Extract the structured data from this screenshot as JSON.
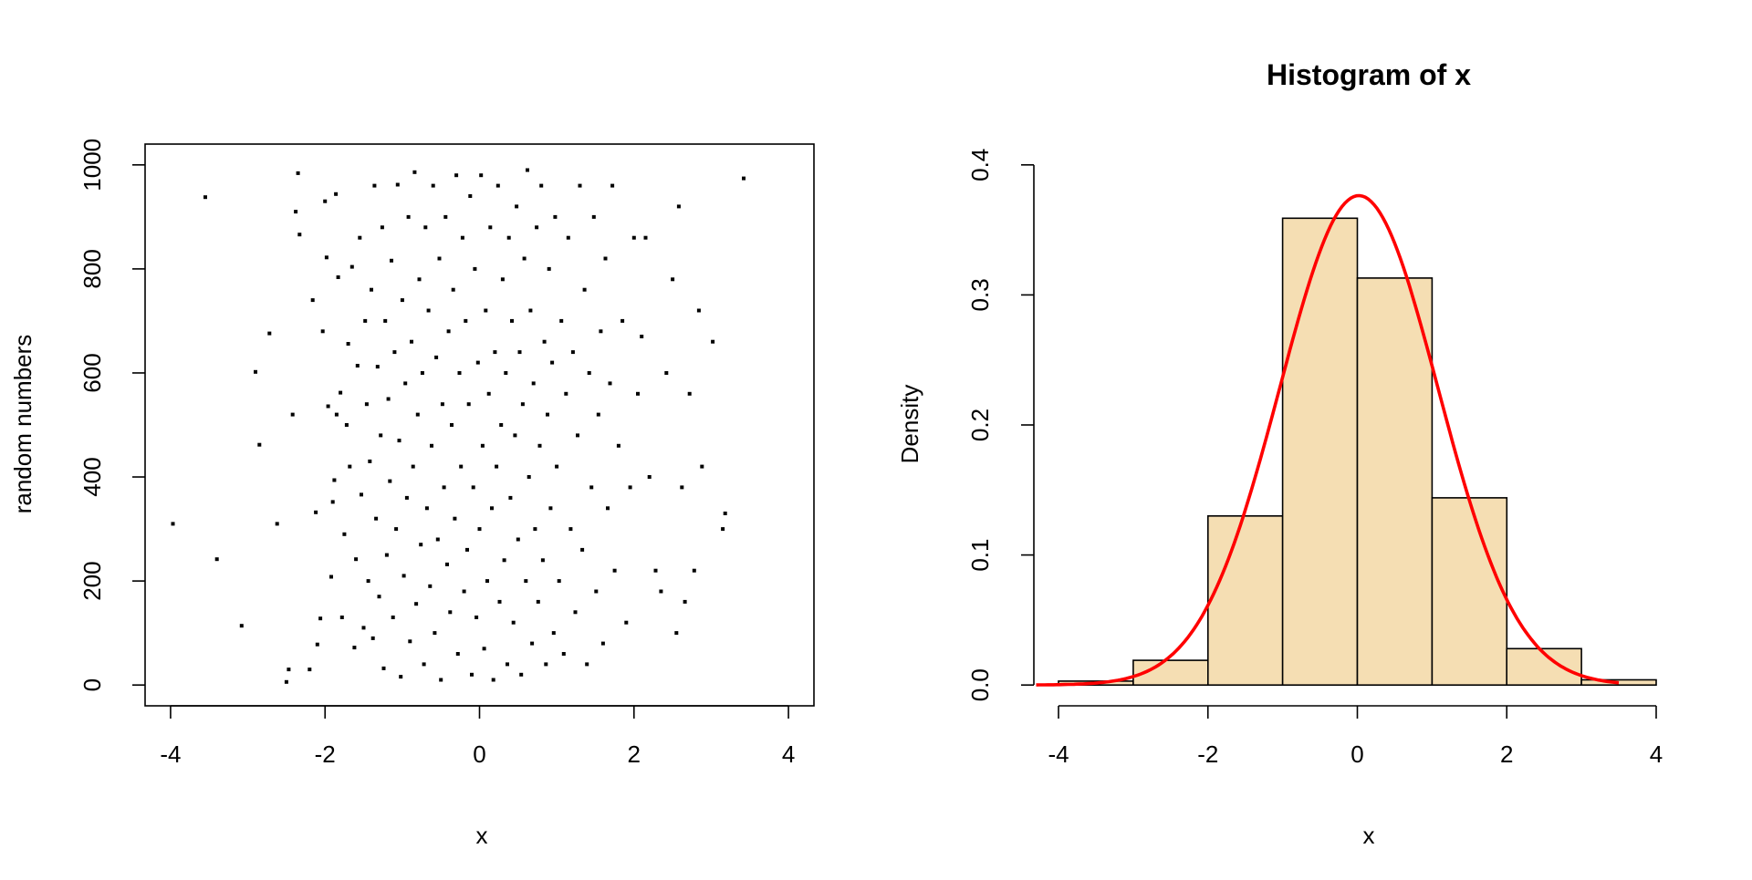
{
  "chart_data": [
    {
      "type": "scatter",
      "title": "",
      "xlabel": "x",
      "ylabel": "random numbers",
      "xlim": [
        -4.33,
        4.33
      ],
      "ylim": [
        -40,
        1040
      ],
      "x_ticks": [
        "-4",
        "-2",
        "0",
        "2",
        "4"
      ],
      "y_ticks": [
        "0",
        "200",
        "400",
        "600",
        "800",
        "1000"
      ],
      "x_tick_values": [
        -4,
        -2,
        0,
        2,
        4
      ],
      "y_tick_values": [
        0,
        200,
        400,
        600,
        800,
        1000
      ],
      "grid": false,
      "point_style": "small filled square",
      "points": [
        [
          -3.97,
          310
        ],
        [
          -3.55,
          938
        ],
        [
          -3.4,
          242
        ],
        [
          -3.08,
          114
        ],
        [
          -2.9,
          602
        ],
        [
          -2.85,
          462
        ],
        [
          -2.72,
          676
        ],
        [
          -2.62,
          310
        ],
        [
          -2.5,
          6
        ],
        [
          -2.47,
          30
        ],
        [
          -2.42,
          520
        ],
        [
          -2.38,
          910
        ],
        [
          -2.35,
          984
        ],
        [
          -2.33,
          866
        ],
        [
          -2.2,
          30
        ],
        [
          -2.16,
          740
        ],
        [
          -2.12,
          332
        ],
        [
          -2.1,
          78
        ],
        [
          -2.06,
          128
        ],
        [
          -2.03,
          680
        ],
        [
          -2.0,
          930
        ],
        [
          -1.98,
          822
        ],
        [
          -1.96,
          536
        ],
        [
          -1.92,
          208
        ],
        [
          -1.9,
          352
        ],
        [
          -1.88,
          394
        ],
        [
          -1.86,
          944
        ],
        [
          -1.85,
          520
        ],
        [
          -1.83,
          784
        ],
        [
          -1.8,
          562
        ],
        [
          -1.78,
          130
        ],
        [
          -1.75,
          290
        ],
        [
          -1.72,
          500
        ],
        [
          -1.7,
          656
        ],
        [
          -1.68,
          420
        ],
        [
          -1.65,
          804
        ],
        [
          -1.62,
          72
        ],
        [
          -1.6,
          242
        ],
        [
          -1.58,
          614
        ],
        [
          -1.55,
          860
        ],
        [
          -1.53,
          366
        ],
        [
          -1.5,
          110
        ],
        [
          -1.48,
          700
        ],
        [
          -1.46,
          540
        ],
        [
          -1.44,
          200
        ],
        [
          -1.42,
          430
        ],
        [
          -1.4,
          760
        ],
        [
          -1.38,
          90
        ],
        [
          -1.36,
          960
        ],
        [
          -1.34,
          320
        ],
        [
          -1.32,
          612
        ],
        [
          -1.3,
          170
        ],
        [
          -1.28,
          480
        ],
        [
          -1.26,
          880
        ],
        [
          -1.24,
          32
        ],
        [
          -1.22,
          700
        ],
        [
          -1.2,
          250
        ],
        [
          -1.18,
          550
        ],
        [
          -1.16,
          392
        ],
        [
          -1.14,
          816
        ],
        [
          -1.12,
          130
        ],
        [
          -1.1,
          640
        ],
        [
          -1.08,
          300
        ],
        [
          -1.06,
          962
        ],
        [
          -1.04,
          470
        ],
        [
          -1.02,
          16
        ],
        [
          -1.0,
          740
        ],
        [
          -0.98,
          210
        ],
        [
          -0.96,
          580
        ],
        [
          -0.94,
          360
        ],
        [
          -0.92,
          900
        ],
        [
          -0.9,
          84
        ],
        [
          -0.88,
          660
        ],
        [
          -0.86,
          420
        ],
        [
          -0.84,
          986
        ],
        [
          -0.82,
          156
        ],
        [
          -0.8,
          520
        ],
        [
          -0.78,
          780
        ],
        [
          -0.76,
          270
        ],
        [
          -0.74,
          600
        ],
        [
          -0.72,
          40
        ],
        [
          -0.7,
          880
        ],
        [
          -0.68,
          340
        ],
        [
          -0.66,
          720
        ],
        [
          -0.64,
          190
        ],
        [
          -0.62,
          460
        ],
        [
          -0.6,
          960
        ],
        [
          -0.58,
          100
        ],
        [
          -0.56,
          630
        ],
        [
          -0.54,
          280
        ],
        [
          -0.52,
          820
        ],
        [
          -0.5,
          10
        ],
        [
          -0.48,
          540
        ],
        [
          -0.46,
          380
        ],
        [
          -0.44,
          900
        ],
        [
          -0.42,
          232
        ],
        [
          -0.4,
          680
        ],
        [
          -0.38,
          140
        ],
        [
          -0.36,
          500
        ],
        [
          -0.34,
          760
        ],
        [
          -0.32,
          320
        ],
        [
          -0.3,
          980
        ],
        [
          -0.28,
          60
        ],
        [
          -0.26,
          600
        ],
        [
          -0.24,
          420
        ],
        [
          -0.22,
          860
        ],
        [
          -0.2,
          180
        ],
        [
          -0.18,
          700
        ],
        [
          -0.16,
          260
        ],
        [
          -0.14,
          540
        ],
        [
          -0.12,
          940
        ],
        [
          -0.1,
          20
        ],
        [
          -0.08,
          380
        ],
        [
          -0.06,
          800
        ],
        [
          -0.04,
          130
        ],
        [
          -0.02,
          620
        ],
        [
          0.0,
          300
        ],
        [
          0.02,
          980
        ],
        [
          0.04,
          460
        ],
        [
          0.06,
          70
        ],
        [
          0.08,
          720
        ],
        [
          0.1,
          200
        ],
        [
          0.12,
          560
        ],
        [
          0.14,
          880
        ],
        [
          0.16,
          340
        ],
        [
          0.18,
          10
        ],
        [
          0.2,
          640
        ],
        [
          0.22,
          420
        ],
        [
          0.24,
          960
        ],
        [
          0.26,
          160
        ],
        [
          0.28,
          500
        ],
        [
          0.3,
          780
        ],
        [
          0.32,
          240
        ],
        [
          0.34,
          600
        ],
        [
          0.36,
          40
        ],
        [
          0.38,
          860
        ],
        [
          0.4,
          360
        ],
        [
          0.42,
          700
        ],
        [
          0.44,
          120
        ],
        [
          0.46,
          480
        ],
        [
          0.48,
          920
        ],
        [
          0.5,
          280
        ],
        [
          0.52,
          640
        ],
        [
          0.54,
          20
        ],
        [
          0.56,
          540
        ],
        [
          0.58,
          820
        ],
        [
          0.6,
          200
        ],
        [
          0.62,
          990
        ],
        [
          0.64,
          400
        ],
        [
          0.66,
          720
        ],
        [
          0.68,
          80
        ],
        [
          0.7,
          580
        ],
        [
          0.72,
          300
        ],
        [
          0.74,
          880
        ],
        [
          0.76,
          160
        ],
        [
          0.78,
          460
        ],
        [
          0.8,
          960
        ],
        [
          0.82,
          240
        ],
        [
          0.84,
          660
        ],
        [
          0.86,
          40
        ],
        [
          0.88,
          520
        ],
        [
          0.9,
          800
        ],
        [
          0.92,
          340
        ],
        [
          0.94,
          620
        ],
        [
          0.96,
          100
        ],
        [
          0.98,
          900
        ],
        [
          1.0,
          420
        ],
        [
          1.03,
          200
        ],
        [
          1.06,
          700
        ],
        [
          1.09,
          60
        ],
        [
          1.12,
          560
        ],
        [
          1.15,
          860
        ],
        [
          1.18,
          300
        ],
        [
          1.21,
          640
        ],
        [
          1.24,
          140
        ],
        [
          1.27,
          480
        ],
        [
          1.3,
          960
        ],
        [
          1.33,
          260
        ],
        [
          1.36,
          760
        ],
        [
          1.39,
          40
        ],
        [
          1.42,
          600
        ],
        [
          1.45,
          380
        ],
        [
          1.48,
          900
        ],
        [
          1.51,
          180
        ],
        [
          1.54,
          520
        ],
        [
          1.57,
          680
        ],
        [
          1.6,
          80
        ],
        [
          1.63,
          820
        ],
        [
          1.66,
          340
        ],
        [
          1.69,
          580
        ],
        [
          1.72,
          960
        ],
        [
          1.75,
          220
        ],
        [
          1.8,
          460
        ],
        [
          1.85,
          700
        ],
        [
          1.9,
          120
        ],
        [
          1.95,
          380
        ],
        [
          2.0,
          860
        ],
        [
          2.05,
          560
        ],
        [
          2.1,
          670
        ],
        [
          2.15,
          860
        ],
        [
          2.2,
          400
        ],
        [
          2.28,
          220
        ],
        [
          2.35,
          180
        ],
        [
          2.42,
          600
        ],
        [
          2.5,
          780
        ],
        [
          2.55,
          100
        ],
        [
          2.58,
          920
        ],
        [
          2.62,
          380
        ],
        [
          2.66,
          160
        ],
        [
          2.72,
          560
        ],
        [
          2.78,
          220
        ],
        [
          2.84,
          720
        ],
        [
          2.88,
          420
        ],
        [
          3.02,
          660
        ],
        [
          3.15,
          300
        ],
        [
          3.18,
          330
        ],
        [
          3.42,
          974
        ]
      ]
    },
    {
      "type": "bar",
      "title": "Histogram of x",
      "xlabel": "x",
      "ylabel": "Density",
      "xlim": [
        -4.33,
        4.33
      ],
      "ylim": [
        -0.016,
        0.416
      ],
      "x_ticks": [
        "-4",
        "-2",
        "0",
        "2",
        "4"
      ],
      "y_ticks": [
        "0.0",
        "0.1",
        "0.2",
        "0.3",
        "0.4"
      ],
      "x_tick_values": [
        -4,
        -2,
        0,
        2,
        4
      ],
      "y_tick_values": [
        0.0,
        0.1,
        0.2,
        0.3,
        0.4
      ],
      "grid": false,
      "bin_edges": [
        -4,
        -3,
        -2,
        -1,
        0,
        1,
        2,
        3,
        4
      ],
      "densities": [
        0.003,
        0.019,
        0.13,
        0.359,
        0.313,
        0.144,
        0.028,
        0.004
      ],
      "bar_fill": "#F5DEB3",
      "bar_stroke": "#000000",
      "density_curve": {
        "name": "",
        "color": "#FF0000",
        "x_range": [
          -4.3,
          3.5
        ],
        "mean": 0.02,
        "sd": 1.06
      }
    }
  ]
}
